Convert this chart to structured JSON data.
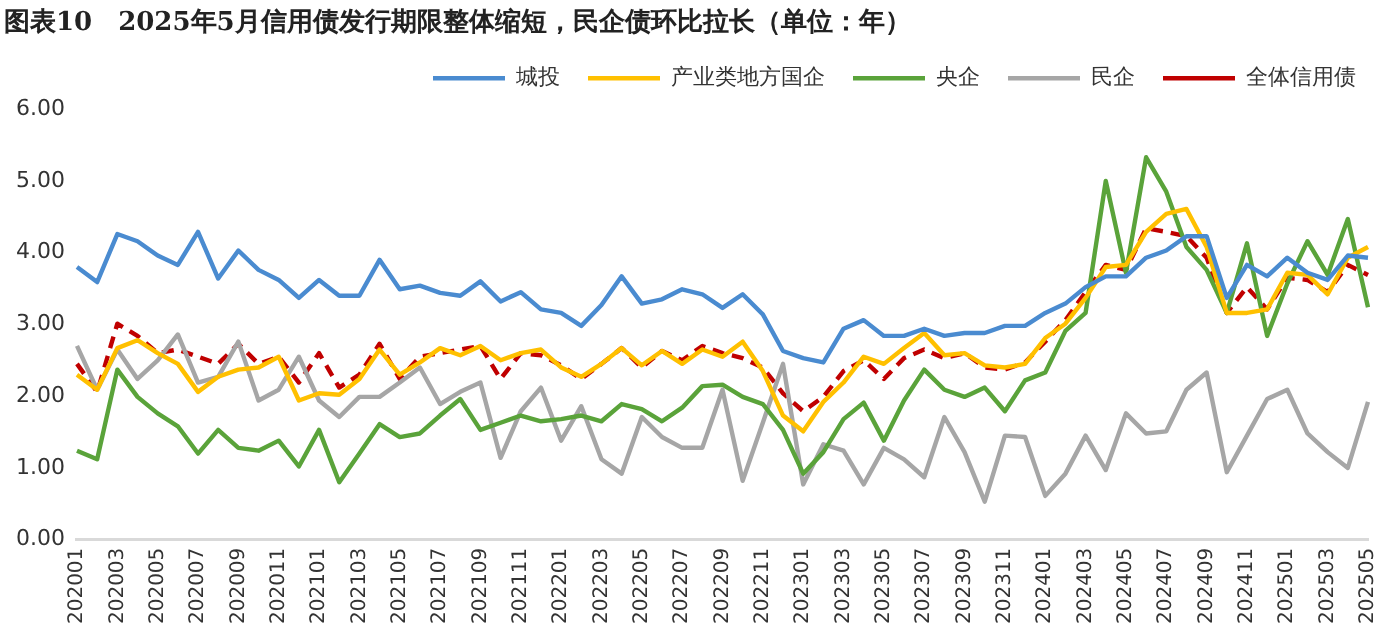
{
  "chart_data": {
    "type": "line",
    "title": "图表10　2025年5月信用债发行期限整体缩短，民企债环比拉长（单位：年）",
    "categories": [
      "202001",
      null,
      "202003",
      null,
      "202005",
      null,
      "202007",
      null,
      "202009",
      null,
      "202011",
      null,
      "202101",
      null,
      "202103",
      null,
      "202105",
      null,
      "202107",
      null,
      "202109",
      null,
      "202111",
      null,
      "202201",
      null,
      "202203",
      null,
      "202205",
      null,
      "202207",
      null,
      "202209",
      null,
      "202211",
      null,
      "202301",
      null,
      "202303",
      null,
      "202305",
      null,
      "202307",
      null,
      "202309",
      null,
      "202311",
      null,
      "202401",
      null,
      "202403",
      null,
      "202405",
      null,
      "202407",
      null,
      "202409",
      null,
      "202411",
      null,
      "202501",
      null,
      "202503",
      null,
      "202505"
    ],
    "series": [
      {
        "name": "城投",
        "color": "#4a8bd0",
        "line_style": "solid",
        "values": [
          3.8,
          3.59,
          4.26,
          4.16,
          3.96,
          3.83,
          4.29,
          3.64,
          4.03,
          3.76,
          3.62,
          3.37,
          3.62,
          3.4,
          3.4,
          3.9,
          3.49,
          3.54,
          3.44,
          3.4,
          3.6,
          3.32,
          3.45,
          3.21,
          3.16,
          2.98,
          3.27,
          3.67,
          3.29,
          3.35,
          3.49,
          3.42,
          3.23,
          3.42,
          3.14,
          2.63,
          2.53,
          2.47,
          2.94,
          3.06,
          2.84,
          2.84,
          2.94,
          2.84,
          2.88,
          2.88,
          2.98,
          2.98,
          3.16,
          3.29,
          3.52,
          3.67,
          3.67,
          3.93,
          4.03,
          4.23,
          4.23,
          3.37,
          3.83,
          3.67,
          3.93,
          3.72,
          3.62,
          3.96,
          3.93
        ]
      },
      {
        "name": "产业类地方国企",
        "color": "#ffc000",
        "line_style": "solid",
        "values": [
          2.3,
          2.09,
          2.67,
          2.78,
          2.6,
          2.45,
          2.06,
          2.27,
          2.37,
          2.4,
          2.55,
          1.94,
          2.04,
          2.02,
          2.24,
          2.65,
          2.3,
          2.47,
          2.67,
          2.57,
          2.7,
          2.5,
          2.6,
          2.65,
          2.4,
          2.27,
          2.45,
          2.67,
          2.43,
          2.63,
          2.45,
          2.65,
          2.55,
          2.76,
          2.35,
          1.73,
          1.51,
          1.92,
          2.19,
          2.55,
          2.45,
          2.67,
          2.88,
          2.57,
          2.6,
          2.43,
          2.4,
          2.45,
          2.81,
          3.01,
          3.37,
          3.8,
          3.83,
          4.29,
          4.54,
          4.61,
          4.08,
          3.16,
          3.16,
          3.21,
          3.72,
          3.69,
          3.42,
          3.93,
          4.08
        ]
      },
      {
        "name": "央企",
        "color": "#5aa33a",
        "line_style": "solid",
        "values": [
          1.24,
          1.12,
          2.37,
          1.99,
          1.76,
          1.58,
          1.2,
          1.53,
          1.28,
          1.24,
          1.38,
          1.02,
          1.53,
          0.8,
          1.2,
          1.61,
          1.43,
          1.48,
          1.73,
          1.96,
          1.53,
          1.63,
          1.73,
          1.65,
          1.68,
          1.73,
          1.65,
          1.89,
          1.82,
          1.65,
          1.84,
          2.14,
          2.16,
          1.99,
          1.89,
          1.53,
          0.92,
          1.22,
          1.68,
          1.91,
          1.38,
          1.94,
          2.37,
          2.09,
          1.99,
          2.12,
          1.79,
          2.22,
          2.33,
          2.91,
          3.16,
          5.0,
          3.72,
          5.33,
          4.85,
          4.08,
          3.76,
          3.16,
          4.13,
          2.84,
          3.57,
          4.16,
          3.69,
          4.47,
          3.24
        ]
      },
      {
        "name": "民企",
        "color": "#a6a6a6",
        "line_style": "solid",
        "values": [
          2.7,
          2.09,
          2.65,
          2.24,
          2.5,
          2.86,
          2.19,
          2.27,
          2.76,
          1.94,
          2.09,
          2.55,
          1.94,
          1.71,
          1.99,
          1.99,
          2.19,
          2.4,
          1.89,
          2.06,
          2.19,
          1.14,
          1.79,
          2.12,
          1.38,
          1.86,
          1.12,
          0.92,
          1.71,
          1.43,
          1.28,
          1.28,
          2.09,
          0.82,
          1.63,
          2.45,
          0.77,
          1.33,
          1.24,
          0.77,
          1.28,
          1.12,
          0.87,
          1.71,
          1.22,
          0.53,
          1.45,
          1.43,
          0.61,
          0.92,
          1.45,
          0.97,
          1.76,
          1.48,
          1.51,
          2.09,
          2.33,
          0.94,
          1.45,
          1.96,
          2.09,
          1.48,
          1.22,
          1.0,
          1.92
        ]
      },
      {
        "name": "全体信用债",
        "color": "#c00000",
        "line_style": "dashed",
        "values": [
          2.45,
          2.06,
          3.01,
          2.84,
          2.6,
          2.65,
          2.55,
          2.45,
          2.73,
          2.45,
          2.55,
          2.19,
          2.6,
          2.12,
          2.3,
          2.73,
          2.24,
          2.55,
          2.6,
          2.65,
          2.7,
          2.24,
          2.6,
          2.57,
          2.43,
          2.24,
          2.45,
          2.67,
          2.4,
          2.63,
          2.5,
          2.7,
          2.6,
          2.53,
          2.4,
          2.04,
          1.79,
          1.99,
          2.35,
          2.5,
          2.24,
          2.53,
          2.65,
          2.53,
          2.6,
          2.4,
          2.37,
          2.47,
          2.76,
          3.06,
          3.45,
          3.83,
          3.76,
          4.34,
          4.29,
          4.23,
          3.93,
          3.16,
          3.52,
          3.21,
          3.65,
          3.62,
          3.45,
          3.83,
          3.69
        ]
      }
    ],
    "ylim": [
      0,
      6
    ],
    "yticks": [
      {
        "value": 0,
        "label": "0.00"
      },
      {
        "value": 1,
        "label": "1.00"
      },
      {
        "value": 2,
        "label": "2.00"
      },
      {
        "value": 3,
        "label": "3.00"
      },
      {
        "value": 4,
        "label": "4.00"
      },
      {
        "value": 5,
        "label": "5.00"
      },
      {
        "value": 6,
        "label": "6.00"
      }
    ],
    "grid": false,
    "legend": "top right",
    "marker": "none"
  }
}
